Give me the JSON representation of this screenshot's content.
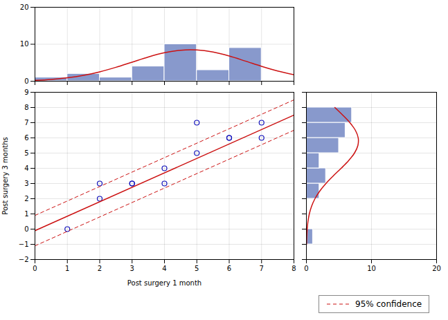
{
  "chart_data": [
    {
      "type": "histogram",
      "bins": [
        0,
        1,
        2,
        3,
        4,
        5,
        6,
        7,
        8
      ],
      "series": [
        {
          "type": "bar",
          "color": "#8899cc",
          "values": [
            1,
            2,
            1,
            4,
            10,
            3,
            9,
            0
          ]
        },
        {
          "type": "line",
          "color": "#cc1111",
          "x": [
            0,
            0.5,
            1,
            1.5,
            2,
            2.5,
            3,
            3.5,
            4,
            4.5,
            5,
            5.5,
            6,
            6.5,
            7,
            7.5,
            8
          ],
          "values": [
            0.2428,
            0.49,
            0.9155,
            1.5832,
            2.5349,
            3.7572,
            5.1555,
            6.5487,
            7.7006,
            8.3828,
            8.4477,
            7.881,
            6.8063,
            5.4416,
            4.0276,
            2.7595,
            1.7504
          ]
        }
      ],
      "xlim": [
        0,
        8
      ],
      "xticks": [
        0,
        1,
        2,
        3,
        4,
        5,
        6,
        7,
        8
      ],
      "ylim": [
        0,
        20
      ],
      "yticks": [
        0,
        10,
        20
      ],
      "grid": true,
      "tick_labels": "y"
    },
    {
      "type": "scatter",
      "xlabel": "Post surgery 1 month",
      "ylabel": "Post surgery 3 months",
      "series": [
        {
          "type": "scatter",
          "marker": "circle",
          "color": "#1111bb",
          "x": [
            1,
            2,
            2,
            3,
            3,
            4,
            4,
            5,
            5,
            6,
            6,
            7,
            7
          ],
          "values": [
            0,
            2,
            3,
            3,
            3,
            4,
            3,
            5,
            7,
            6,
            6,
            7,
            6
          ]
        },
        {
          "type": "line",
          "line_style": "solid",
          "color": "#cc1111",
          "x": [
            0,
            8
          ],
          "values": [
            -0.1,
            7.5
          ]
        },
        {
          "name": "95% confidence",
          "type": "line",
          "line_style": "dashed",
          "color": "#cc1111",
          "x": [
            0,
            8
          ],
          "values": [
            0.9,
            8.5
          ]
        },
        {
          "type": "line",
          "line_style": "dashed",
          "color": "#cc1111",
          "x": [
            0,
            8
          ],
          "values": [
            -1.1,
            6.5
          ]
        }
      ],
      "xlim": [
        0,
        8
      ],
      "xticks": [
        0,
        1,
        2,
        3,
        4,
        5,
        6,
        7,
        8
      ],
      "ylim": [
        -2,
        9
      ],
      "yticks": [
        -2,
        -1,
        0,
        1,
        2,
        3,
        4,
        5,
        6,
        7,
        8,
        9
      ],
      "grid": true,
      "legend": "lower right"
    },
    {
      "type": "histogram",
      "orientation": "horizontal",
      "bins": [
        -1,
        0,
        1,
        2,
        3,
        4,
        5,
        6,
        7,
        8
      ],
      "series": [
        {
          "type": "bar",
          "color": "#8899cc",
          "values": [
            1,
            0,
            0,
            2,
            3,
            2,
            5,
            6,
            7
          ]
        },
        {
          "type": "line",
          "color": "#cc1111",
          "y": [
            -1,
            -0.5,
            0,
            0.5,
            1,
            1.5,
            2,
            2.5,
            3,
            3.5,
            4,
            4.5,
            5,
            5.5,
            6,
            6.5,
            7,
            7.5,
            8
          ],
          "values": [
            0.0247,
            0.056,
            0.1194,
            0.2389,
            0.4491,
            0.7931,
            1.3158,
            2.0507,
            3.0025,
            4.1296,
            5.3358,
            6.4766,
            7.3849,
            7.9105,
            7.9601,
            7.5247,
            6.6822,
            5.5744,
            4.3686
          ]
        }
      ],
      "xlim": [
        0,
        20
      ],
      "xticks": [
        0,
        10,
        20
      ],
      "ylim": [
        -2,
        9
      ],
      "yticks": [
        -2,
        -1,
        0,
        1,
        2,
        3,
        4,
        5,
        6,
        7,
        8,
        9
      ],
      "grid": true,
      "tick_labels": "x"
    }
  ]
}
